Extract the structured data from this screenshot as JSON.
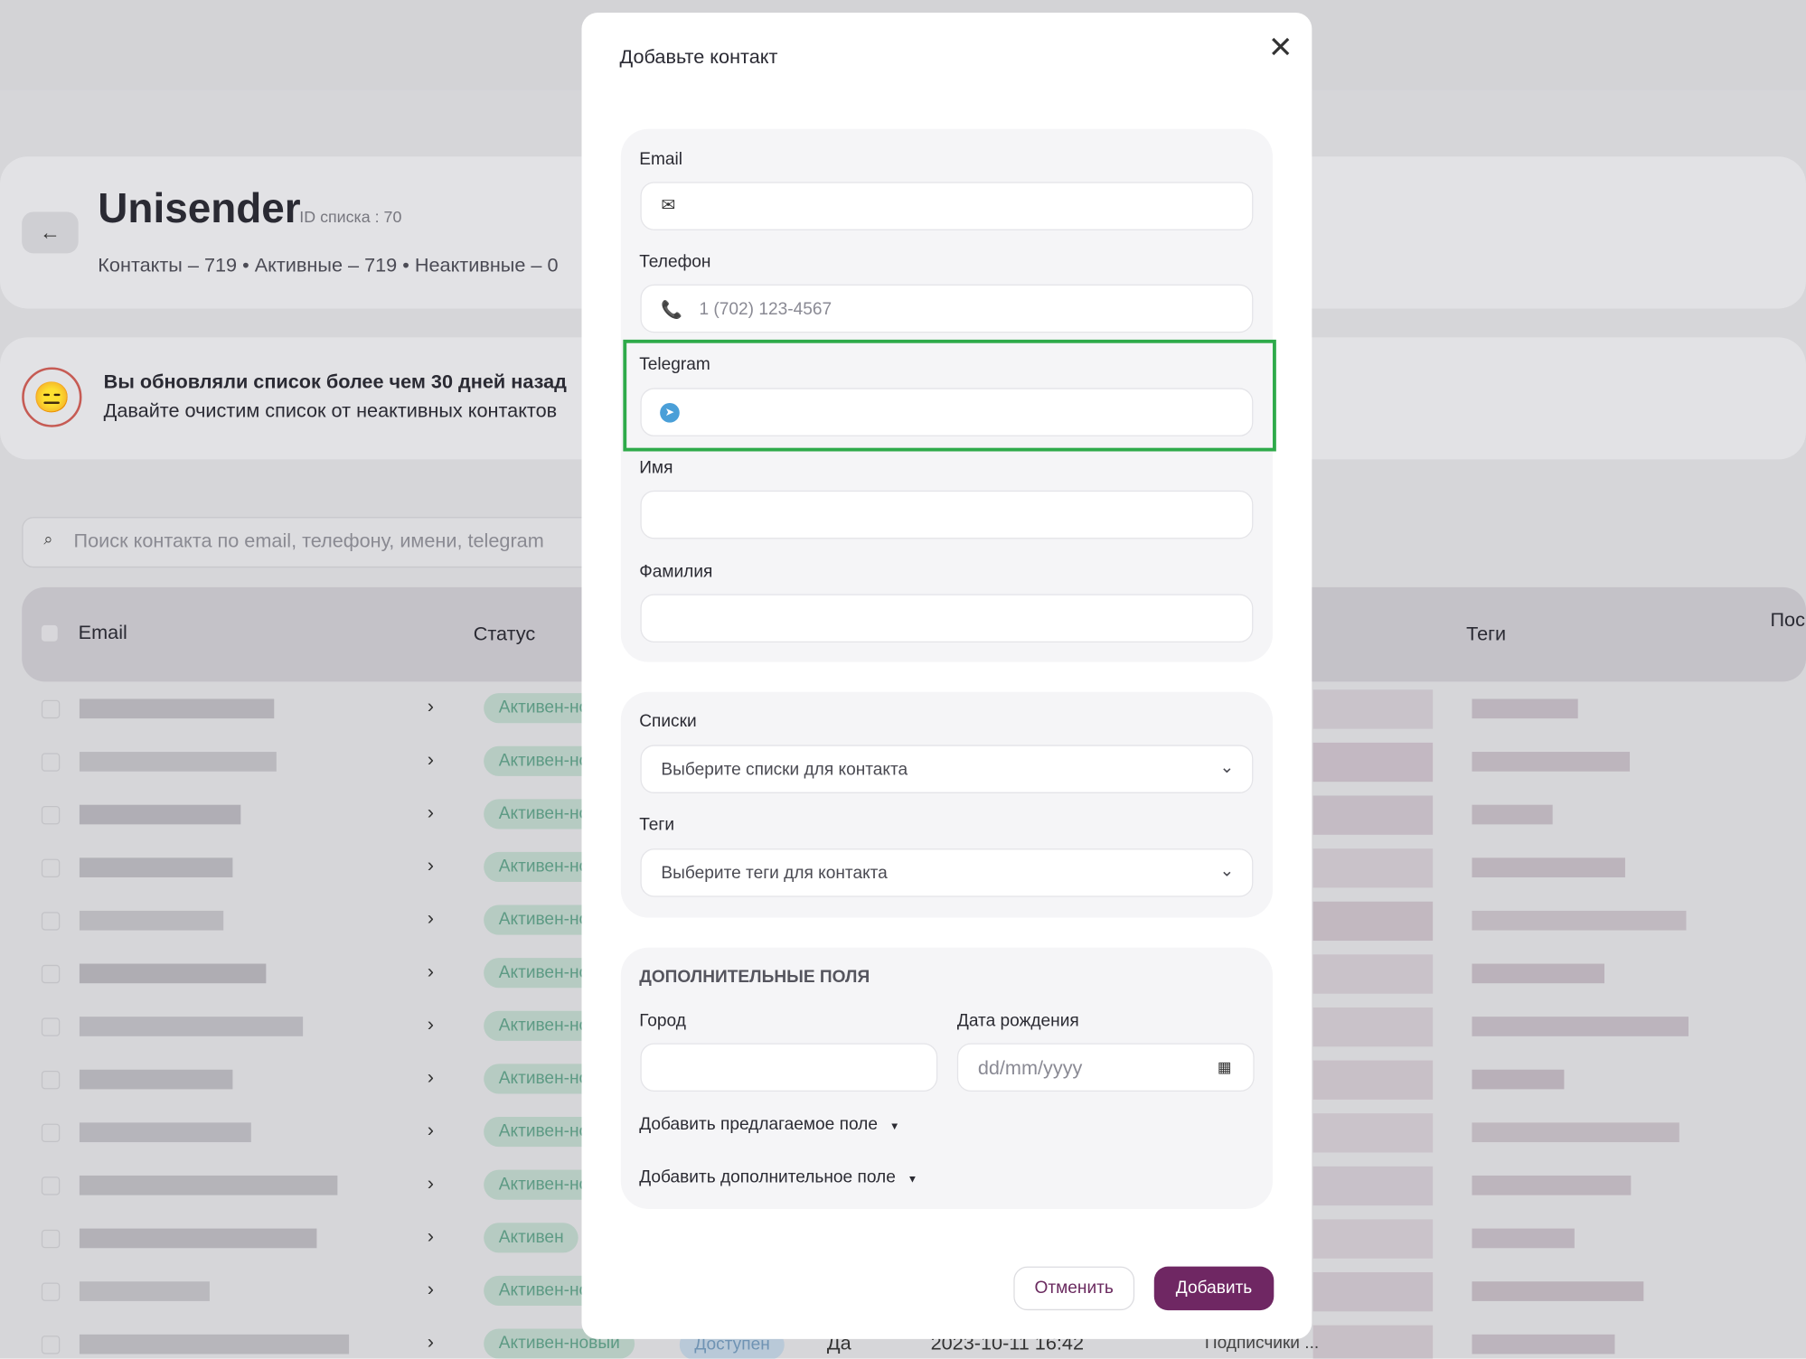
{
  "background": {
    "brand": "Unisender",
    "list_id": "ID списка : 70",
    "stats": "Контакты – 719 • Активные – 719 • Неактивные – 0",
    "notice_title": "Вы обновляли список более чем 30 дней назад",
    "notice_text": "Давайте очистим список от неактивных контактов",
    "search_placeholder": "Поиск контакта по email, телефону, имени, telegram",
    "headers": [
      "Email",
      "Статус",
      "Теги",
      "Пос"
    ],
    "row_statuses": [
      "Активен-новый",
      "Активен-новый",
      "Активен-новый",
      "Активен-новый",
      "Активен-новый",
      "Активен-новый",
      "Активен-новый",
      "Активен-новый",
      "Активен-новый",
      "Активен-новый",
      "Активен",
      "Активен-новый",
      "Активен-новый"
    ],
    "last_row": [
      "Доступен",
      "Да",
      "2023-10-11 16:42",
      "Подписчики ..."
    ]
  },
  "modal": {
    "title": "Добавьте контакт",
    "fields": {
      "email": "Email",
      "phone": "Телефон",
      "phone_placeholder": "1 (702) 123-4567",
      "telegram": "Telegram",
      "first_name": "Имя",
      "last_name": "Фамилия"
    },
    "lists": "Списки",
    "lists_placeholder": "Выберите списки для контакта",
    "tags": "Теги",
    "tags_placeholder": "Выберите теги для контакта",
    "extra": {
      "heading": "ДОПОЛНИТЕЛЬНЫЕ ПОЛЯ",
      "city": "Город",
      "birthday": "Дата рождения",
      "date_placeholder": "dd/mm/yyyy",
      "add_suggested": "Добавить предлагаемое поле",
      "add_custom": "Добавить дополнительное поле"
    },
    "cancel": "Отменить",
    "submit": "Добавить"
  }
}
